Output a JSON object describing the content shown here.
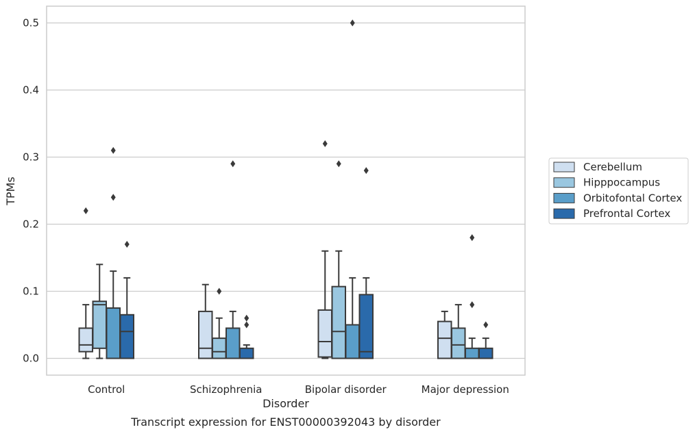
{
  "caption": "Transcript expression for ENST00000392043 by disorder",
  "chart_data": {
    "type": "box",
    "title": "",
    "xlabel": "Disorder",
    "ylabel": "TPMs",
    "categories": [
      "Control",
      "Schizophrenia",
      "Bipolar disorder",
      "Major depression"
    ],
    "yticks": [
      "0.0",
      "0.1",
      "0.2",
      "0.3",
      "0.4",
      "0.5"
    ],
    "ylim": [
      -0.025,
      0.525
    ],
    "grid": "horizontal",
    "legend_position": "right",
    "series": [
      {
        "name": "Cerebellum",
        "color": "#cfdff0",
        "boxes": [
          {
            "whislo": 0.0,
            "q1": 0.01,
            "med": 0.02,
            "q3": 0.045,
            "whishi": 0.08,
            "fliers": [
              0.22
            ]
          },
          {
            "whislo": 0.0,
            "q1": 0.0,
            "med": 0.015,
            "q3": 0.07,
            "whishi": 0.11,
            "fliers": []
          },
          {
            "whislo": 0.0,
            "q1": 0.002,
            "med": 0.025,
            "q3": 0.072,
            "whishi": 0.16,
            "fliers": [
              0.32
            ]
          },
          {
            "whislo": 0.0,
            "q1": 0.0,
            "med": 0.03,
            "q3": 0.055,
            "whishi": 0.07,
            "fliers": []
          }
        ]
      },
      {
        "name": "Hipppocampus",
        "color": "#9ac7e0",
        "boxes": [
          {
            "whislo": 0.0,
            "q1": 0.015,
            "med": 0.08,
            "q3": 0.085,
            "whishi": 0.14,
            "fliers": []
          },
          {
            "whislo": 0.0,
            "q1": 0.0,
            "med": 0.01,
            "q3": 0.03,
            "whishi": 0.06,
            "fliers": [
              0.1
            ]
          },
          {
            "whislo": 0.0,
            "q1": 0.0,
            "med": 0.04,
            "q3": 0.107,
            "whishi": 0.16,
            "fliers": [
              0.29
            ]
          },
          {
            "whislo": 0.0,
            "q1": 0.0,
            "med": 0.02,
            "q3": 0.045,
            "whishi": 0.08,
            "fliers": []
          }
        ]
      },
      {
        "name": "Orbitofontal Cortex",
        "color": "#5a9ec9",
        "boxes": [
          {
            "whislo": 0.0,
            "q1": 0.0,
            "med": 0.0,
            "q3": 0.075,
            "whishi": 0.13,
            "fliers": [
              0.24,
              0.31
            ]
          },
          {
            "whislo": 0.0,
            "q1": 0.0,
            "med": 0.0,
            "q3": 0.045,
            "whishi": 0.07,
            "fliers": [
              0.29
            ]
          },
          {
            "whislo": 0.0,
            "q1": 0.0,
            "med": 0.0,
            "q3": 0.05,
            "whishi": 0.12,
            "fliers": [
              0.5
            ]
          },
          {
            "whislo": 0.0,
            "q1": 0.0,
            "med": 0.0,
            "q3": 0.015,
            "whishi": 0.03,
            "fliers": [
              0.08,
              0.18
            ]
          }
        ]
      },
      {
        "name": "Prefrontal Cortex",
        "color": "#2a6aab",
        "boxes": [
          {
            "whislo": 0.0,
            "q1": 0.0,
            "med": 0.04,
            "q3": 0.065,
            "whishi": 0.12,
            "fliers": [
              0.17
            ]
          },
          {
            "whislo": 0.0,
            "q1": 0.0,
            "med": 0.0,
            "q3": 0.015,
            "whishi": 0.02,
            "fliers": [
              0.05,
              0.06
            ]
          },
          {
            "whislo": 0.0,
            "q1": 0.0,
            "med": 0.01,
            "q3": 0.095,
            "whishi": 0.12,
            "fliers": [
              0.28
            ]
          },
          {
            "whislo": 0.0,
            "q1": 0.0,
            "med": 0.0,
            "q3": 0.015,
            "whishi": 0.03,
            "fliers": [
              0.05
            ]
          }
        ]
      }
    ]
  }
}
